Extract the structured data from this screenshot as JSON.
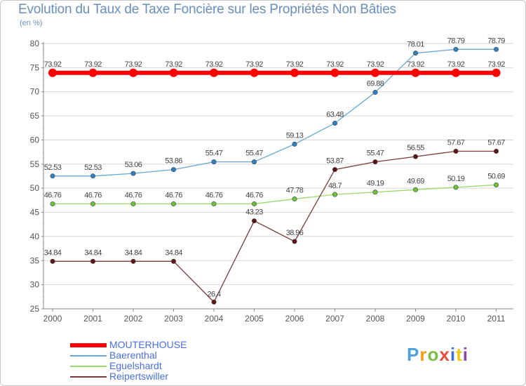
{
  "title": "Evolution du Taux de Taxe Foncière sur les Propriétés Non Bâties",
  "subtitle": "(en %)",
  "brand": {
    "text": "Proxiti",
    "colors": [
      "#4aa3df",
      "#f39c12",
      "#7ac143",
      "#e74c3c",
      "#3f6fd8",
      "#f1c40f",
      "#8e44ad"
    ]
  },
  "chart_data": {
    "type": "line",
    "title": "Evolution du Taux de Taxe Foncière sur les Propriétés Non Bâties",
    "ylabel": "(en %)",
    "xlabel": "",
    "ylim": [
      25,
      80
    ],
    "yticks": [
      25,
      30,
      35,
      40,
      45,
      50,
      55,
      60,
      65,
      70,
      75,
      80
    ],
    "categories": [
      "2000",
      "2001",
      "2002",
      "2003",
      "2004",
      "2005",
      "2006",
      "2007",
      "2008",
      "2009",
      "2010",
      "2011"
    ],
    "grid": "horizontal",
    "legend_position": "bottom-left",
    "series": [
      {
        "name": "MOUTERHOUSE",
        "color": "#ff0000",
        "point_color": "#ff0000",
        "values": [
          73.92,
          73.92,
          73.92,
          73.92,
          73.92,
          73.92,
          73.92,
          73.92,
          73.92,
          73.92,
          73.92,
          73.92
        ],
        "labels": [
          "73.92",
          "73.92",
          "73.92",
          "73.92",
          "73.92",
          "73.92",
          "73.92",
          "73.92",
          "73.92",
          "73.92",
          "73.92",
          "73.92"
        ]
      },
      {
        "name": "Baerenthal",
        "color": "#6aa6d6",
        "point_color": "#2f80c2",
        "values": [
          52.53,
          52.53,
          53.06,
          53.86,
          55.47,
          55.47,
          59.13,
          63.48,
          69.88,
          78.01,
          78.79,
          78.79
        ],
        "labels": [
          "52.53",
          "52.53",
          "53.06",
          "53.86",
          "55.47",
          "55.47",
          "59.13",
          "63.48",
          "69.88",
          "78.01",
          "78.79",
          "78.79"
        ]
      },
      {
        "name": "Eguelshardt",
        "color": "#9bd96a",
        "point_color": "#6cc13a",
        "values": [
          46.76,
          46.76,
          46.76,
          46.76,
          46.76,
          46.76,
          47.78,
          48.7,
          49.19,
          49.69,
          50.19,
          50.69
        ],
        "labels": [
          "46.76",
          "46.76",
          "46.76",
          "46.76",
          "46.76",
          "46.76",
          "47.78",
          "48.7",
          "49.19",
          "49.69",
          "50.19",
          "50.69"
        ]
      },
      {
        "name": "Reipertswiller",
        "color": "#7a3a3a",
        "point_color": "#5e1414",
        "values": [
          34.84,
          34.84,
          34.84,
          34.84,
          26.4,
          43.23,
          38.96,
          53.87,
          55.47,
          56.55,
          57.67,
          57.67
        ],
        "labels": [
          "34.84",
          "34.84",
          "34.84",
          "34.84",
          "26.4",
          "43.23",
          "38.96",
          "53.87",
          "55.47",
          "56.55",
          "57.67",
          "57.67"
        ]
      }
    ]
  }
}
